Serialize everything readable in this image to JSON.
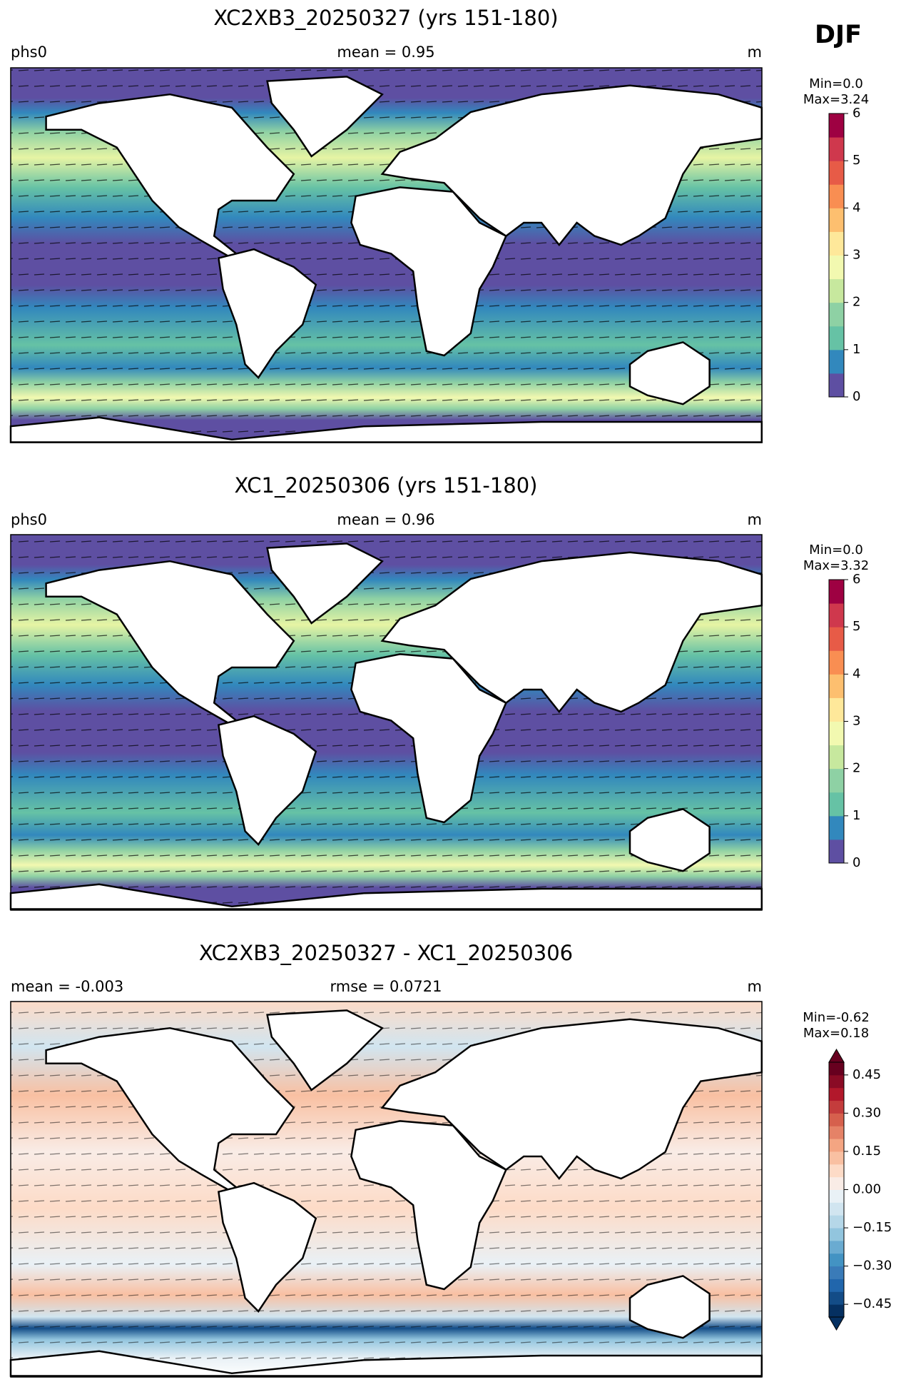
{
  "season": "DJF",
  "chart_data": [
    {
      "type": "map",
      "title": "XC2XB3_20250327 (yrs 151-180)",
      "left_label": "phs0",
      "center_label": "mean = 0.95",
      "right_label": "m",
      "colorbar": {
        "min_text": "Min=0.0",
        "max_text": "Max=3.24",
        "ylim": [
          0,
          6
        ],
        "yticks": [
          0,
          1,
          2,
          3,
          4,
          5,
          6
        ],
        "colors": [
          "#5e4fa2",
          "#3288bd",
          "#66c2a5",
          "#8ed1a4",
          "#c7e89e",
          "#f2f9b0",
          "#fee89a",
          "#fdbf6f",
          "#f98e52",
          "#e75b47",
          "#cf384d",
          "#9e0142"
        ]
      }
    },
    {
      "type": "map",
      "title": "XC1_20250306 (yrs 151-180)",
      "left_label": "phs0",
      "center_label": "mean = 0.96",
      "right_label": "m",
      "colorbar": {
        "min_text": "Min=0.0",
        "max_text": "Max=3.32",
        "ylim": [
          0,
          6
        ],
        "yticks": [
          0,
          1,
          2,
          3,
          4,
          5,
          6
        ],
        "colors": [
          "#5e4fa2",
          "#3288bd",
          "#66c2a5",
          "#8ed1a4",
          "#c7e89e",
          "#f2f9b0",
          "#fee89a",
          "#fdbf6f",
          "#f98e52",
          "#e75b47",
          "#cf384d",
          "#9e0142"
        ]
      }
    },
    {
      "type": "map",
      "title": "XC2XB3_20250327 - XC1_20250306",
      "left_label": "mean = -0.003",
      "center_label": "rmse = 0.0721",
      "right_label": "m",
      "colorbar": {
        "min_text": "Min=-0.62",
        "max_text": "Max=0.18",
        "ylim": [
          -0.5,
          0.5
        ],
        "extend": "both",
        "yticks": [
          {
            "value": -0.45,
            "label": "−0.45"
          },
          {
            "value": -0.3,
            "label": "−0.30"
          },
          {
            "value": -0.15,
            "label": "−0.15"
          },
          {
            "value": 0,
            "label": "0.00"
          },
          0.15,
          {
            "value": 0.3,
            "label": "0.30"
          },
          0.45
        ],
        "colors": [
          "#053061",
          "#134c87",
          "#2166ac",
          "#3a7bb8",
          "#4393c3",
          "#6aabd1",
          "#92c5de",
          "#b5d7e8",
          "#d1e5f0",
          "#e9f1f6",
          "#f9ece6",
          "#fddbc7",
          "#f9c0a2",
          "#f4a582",
          "#e58267",
          "#d6604d",
          "#c43c3c",
          "#b2182b",
          "#8a0b25",
          "#67001f"
        ]
      }
    }
  ]
}
